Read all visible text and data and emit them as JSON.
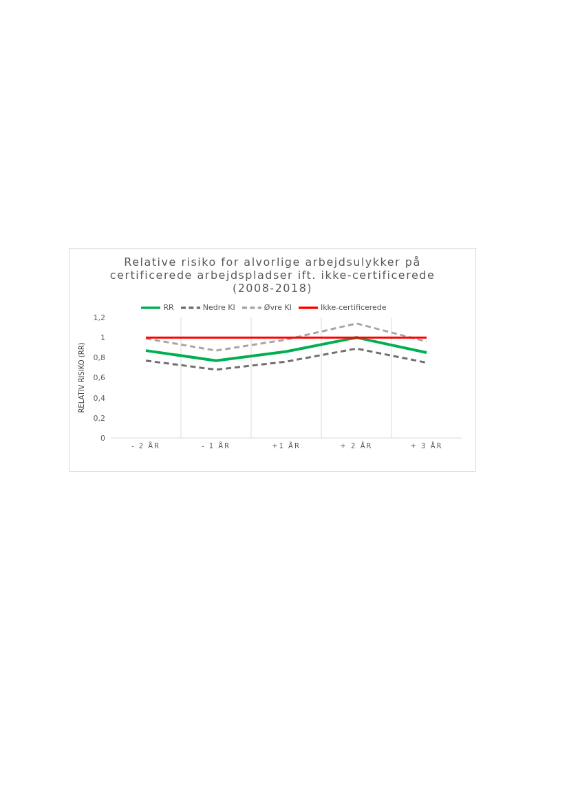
{
  "chart_data": {
    "type": "line",
    "title": "Relative risiko for alvorlige arbejdsulykker på certificerede arbejdspladser ift. ikke-certificerede (2008-2018)",
    "ylabel": "RELATIV RISIKO (RR)",
    "categories": [
      "- 2 ÅR",
      "- 1 ÅR",
      "+1 ÅR",
      "+ 2 ÅR",
      "+ 3 ÅR"
    ],
    "series": [
      {
        "name": "RR",
        "color": "#00b050",
        "values": [
          0.87,
          0.77,
          0.86,
          1.0,
          0.85
        ],
        "line_style": "solid"
      },
      {
        "name": "Nedre KI",
        "color": "#6f6f6f",
        "values": [
          0.77,
          0.68,
          0.76,
          0.89,
          0.75
        ],
        "line_style": "dashed"
      },
      {
        "name": "Øvre KI",
        "color": "#a6a6a6",
        "values": [
          0.99,
          0.87,
          0.98,
          1.14,
          0.96
        ],
        "line_style": "dashed"
      },
      {
        "name": "Ikke-certificerede",
        "color": "#ff0000",
        "values": [
          1,
          1,
          1,
          1,
          1
        ],
        "line_style": "solid"
      }
    ],
    "ylim": [
      0,
      1.2
    ],
    "yticks": [
      0,
      {
        "value": 0.2,
        "label": "0,2"
      },
      {
        "value": 0.4,
        "label": "0,4"
      },
      {
        "value": 0.6,
        "label": "0,6"
      },
      {
        "value": 0.8,
        "label": "0,8"
      },
      1,
      {
        "value": 1.2,
        "label": "1,2"
      }
    ],
    "grid": "x",
    "legend": "top",
    "marker": "none"
  }
}
